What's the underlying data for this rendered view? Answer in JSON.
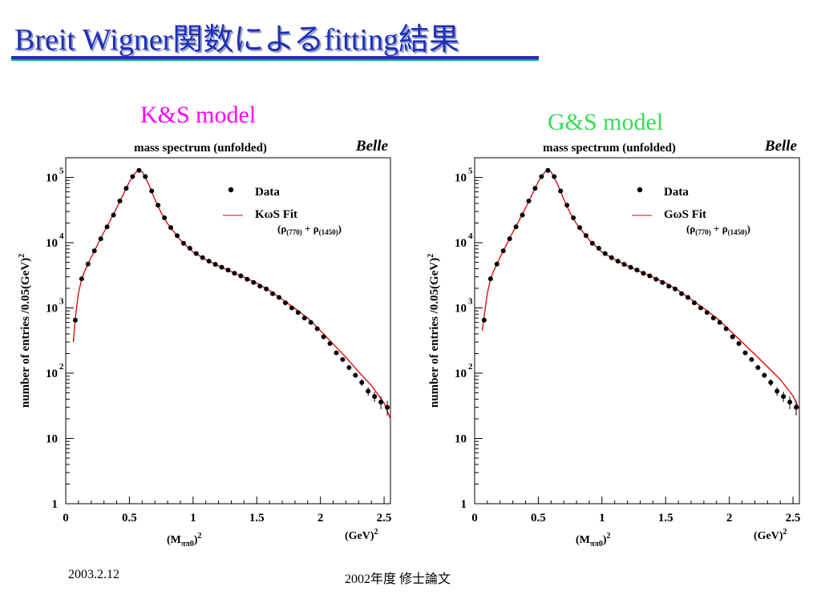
{
  "slide": {
    "title": "Breit Wigner関数によるfitting結果",
    "footer_date": "2003.2.12",
    "footer_thesis": "2002年度 修士論文",
    "accent_color": "#1f2fb8"
  },
  "chart_data": [
    {
      "type": "scatter",
      "model_label": "K&S model",
      "model_label_color": "#ff00ff",
      "title": "mass spectrum (unfolded)",
      "watermark": "Belle",
      "ylabel": "number of entries   /0.05(GeV)",
      "ylabel_sup": "2",
      "xlabel": "(M",
      "xlabel_sub": "ππ0",
      "xlabel_sup": "2",
      "xunit": "(GeV)",
      "xunit_sup": "2",
      "xlim": [
        0,
        2.55
      ],
      "ylim": [
        1,
        200000
      ],
      "y_log": true,
      "x_ticks": [
        "0",
        "0.5",
        "1",
        "1.5",
        "2",
        "2.5"
      ],
      "y_ticks": [
        {
          "base": "1",
          "exp": ""
        },
        {
          "base": "10",
          "exp": ""
        },
        {
          "base": "10",
          "exp": "2"
        },
        {
          "base": "10",
          "exp": "3"
        },
        {
          "base": "10",
          "exp": "4"
        },
        {
          "base": "10",
          "exp": "5"
        }
      ],
      "legend": {
        "data_label": "Data",
        "fit_label": "KωS Fit",
        "fit_note_parts": [
          "(ρ",
          "(770)",
          " + ρ",
          "(1450)",
          ")"
        ]
      },
      "series": [
        {
          "name": "Data",
          "x": [
            0.075,
            0.125,
            0.175,
            0.225,
            0.275,
            0.325,
            0.375,
            0.425,
            0.475,
            0.525,
            0.575,
            0.625,
            0.675,
            0.725,
            0.775,
            0.825,
            0.875,
            0.925,
            0.975,
            1.025,
            1.075,
            1.125,
            1.175,
            1.225,
            1.275,
            1.325,
            1.375,
            1.425,
            1.475,
            1.525,
            1.575,
            1.625,
            1.675,
            1.725,
            1.775,
            1.825,
            1.875,
            1.925,
            1.975,
            2.025,
            2.075,
            2.125,
            2.175,
            2.225,
            2.275,
            2.325,
            2.375,
            2.425,
            2.475,
            2.525
          ],
          "y": [
            650,
            2800,
            4700,
            7500,
            11500,
            17500,
            26500,
            43500,
            68000,
            103000,
            128000,
            103000,
            62000,
            37500,
            24000,
            17000,
            12800,
            9800,
            8200,
            6800,
            5900,
            5200,
            4650,
            4200,
            3800,
            3400,
            3100,
            2750,
            2450,
            2150,
            1950,
            1650,
            1450,
            1200,
            1000,
            850,
            700,
            600,
            480,
            360,
            285,
            205,
            162,
            122,
            93,
            72,
            53,
            44,
            36,
            30
          ],
          "yerr_rel": [
            0,
            0,
            0,
            0,
            0,
            0,
            0,
            0,
            0,
            0,
            0,
            0,
            0,
            0,
            0,
            0,
            0,
            0,
            0,
            0,
            0,
            0,
            0,
            0,
            0,
            0,
            0,
            0,
            0,
            0,
            0,
            0,
            0,
            0,
            0,
            0,
            0,
            0,
            0,
            0,
            0,
            0.04,
            0.05,
            0.07,
            0.09,
            0.12,
            0.15,
            0.18,
            0.22,
            0.25
          ]
        },
        {
          "name": "KωS Fit",
          "color": "#dd0000",
          "x": [
            0.06,
            0.075,
            0.1,
            0.125,
            0.15,
            0.2,
            0.25,
            0.3,
            0.35,
            0.4,
            0.45,
            0.5,
            0.55,
            0.575,
            0.6,
            0.65,
            0.7,
            0.75,
            0.8,
            0.9,
            1.0,
            1.1,
            1.2,
            1.3,
            1.4,
            1.5,
            1.6,
            1.7,
            1.8,
            1.9,
            2.0,
            2.1,
            2.2,
            2.3,
            2.4,
            2.5,
            2.55
          ],
          "y": [
            300,
            700,
            1700,
            2800,
            3700,
            6000,
            9300,
            14500,
            22000,
            34000,
            54000,
            86000,
            120000,
            128000,
            122000,
            80000,
            46000,
            28500,
            19500,
            11000,
            7200,
            5500,
            4400,
            3600,
            2950,
            2400,
            1850,
            1350,
            980,
            700,
            450,
            280,
            175,
            105,
            65,
            35,
            20
          ]
        }
      ]
    },
    {
      "type": "scatter",
      "model_label": "G&S model",
      "model_label_color": "#33dd55",
      "title": "mass spectrum (unfolded)",
      "watermark": "Belle",
      "ylabel": "number of entries   /0.05(GeV)",
      "ylabel_sup": "2",
      "xlabel": "(M",
      "xlabel_sub": "ππ0",
      "xlabel_sup": "2",
      "xunit": "(GeV)",
      "xunit_sup": "2",
      "xlim": [
        0,
        2.55
      ],
      "ylim": [
        1,
        200000
      ],
      "y_log": true,
      "x_ticks": [
        "0",
        "0.5",
        "1",
        "1.5",
        "2",
        "2.5"
      ],
      "y_ticks": [
        {
          "base": "1",
          "exp": ""
        },
        {
          "base": "10",
          "exp": ""
        },
        {
          "base": "10",
          "exp": "2"
        },
        {
          "base": "10",
          "exp": "3"
        },
        {
          "base": "10",
          "exp": "4"
        },
        {
          "base": "10",
          "exp": "5"
        }
      ],
      "legend": {
        "data_label": "Data",
        "fit_label": "GωS Fit",
        "fit_note_parts": [
          "(ρ",
          "(770)",
          " + ρ",
          "(1450)",
          ")"
        ]
      },
      "series": [
        {
          "name": "Data",
          "x": [
            0.075,
            0.125,
            0.175,
            0.225,
            0.275,
            0.325,
            0.375,
            0.425,
            0.475,
            0.525,
            0.575,
            0.625,
            0.675,
            0.725,
            0.775,
            0.825,
            0.875,
            0.925,
            0.975,
            1.025,
            1.075,
            1.125,
            1.175,
            1.225,
            1.275,
            1.325,
            1.375,
            1.425,
            1.475,
            1.525,
            1.575,
            1.625,
            1.675,
            1.725,
            1.775,
            1.825,
            1.875,
            1.925,
            1.975,
            2.025,
            2.075,
            2.125,
            2.175,
            2.225,
            2.275,
            2.325,
            2.375,
            2.425,
            2.475,
            2.525
          ],
          "y": [
            650,
            2800,
            4700,
            7500,
            11500,
            17500,
            26500,
            43500,
            68000,
            103000,
            128000,
            103000,
            62000,
            37500,
            24000,
            17000,
            12800,
            9800,
            8200,
            6800,
            5900,
            5200,
            4650,
            4200,
            3800,
            3400,
            3100,
            2750,
            2450,
            2150,
            1950,
            1650,
            1450,
            1200,
            1000,
            850,
            700,
            600,
            480,
            360,
            285,
            205,
            162,
            122,
            93,
            72,
            53,
            44,
            36,
            30
          ],
          "yerr_rel": [
            0,
            0,
            0,
            0,
            0,
            0,
            0,
            0,
            0,
            0,
            0,
            0,
            0,
            0,
            0,
            0,
            0,
            0,
            0,
            0,
            0,
            0,
            0,
            0,
            0,
            0,
            0,
            0,
            0,
            0,
            0,
            0,
            0,
            0,
            0,
            0,
            0,
            0,
            0,
            0,
            0,
            0.04,
            0.05,
            0.07,
            0.09,
            0.12,
            0.15,
            0.18,
            0.22,
            0.25
          ]
        },
        {
          "name": "GωS Fit",
          "color": "#dd0000",
          "x": [
            0.06,
            0.075,
            0.1,
            0.125,
            0.15,
            0.2,
            0.25,
            0.3,
            0.35,
            0.4,
            0.45,
            0.5,
            0.55,
            0.575,
            0.6,
            0.65,
            0.7,
            0.75,
            0.8,
            0.9,
            1.0,
            1.1,
            1.2,
            1.3,
            1.4,
            1.5,
            1.6,
            1.7,
            1.8,
            1.9,
            2.0,
            2.1,
            2.2,
            2.3,
            2.4,
            2.5,
            2.55
          ],
          "y": [
            450,
            750,
            1700,
            2800,
            3700,
            6000,
            9300,
            14500,
            22000,
            34000,
            54000,
            86000,
            120000,
            128000,
            122000,
            80000,
            46000,
            28500,
            19500,
            11000,
            7200,
            5500,
            4400,
            3600,
            2950,
            2400,
            1850,
            1350,
            980,
            700,
            460,
            300,
            195,
            125,
            80,
            45,
            28
          ]
        }
      ]
    }
  ]
}
